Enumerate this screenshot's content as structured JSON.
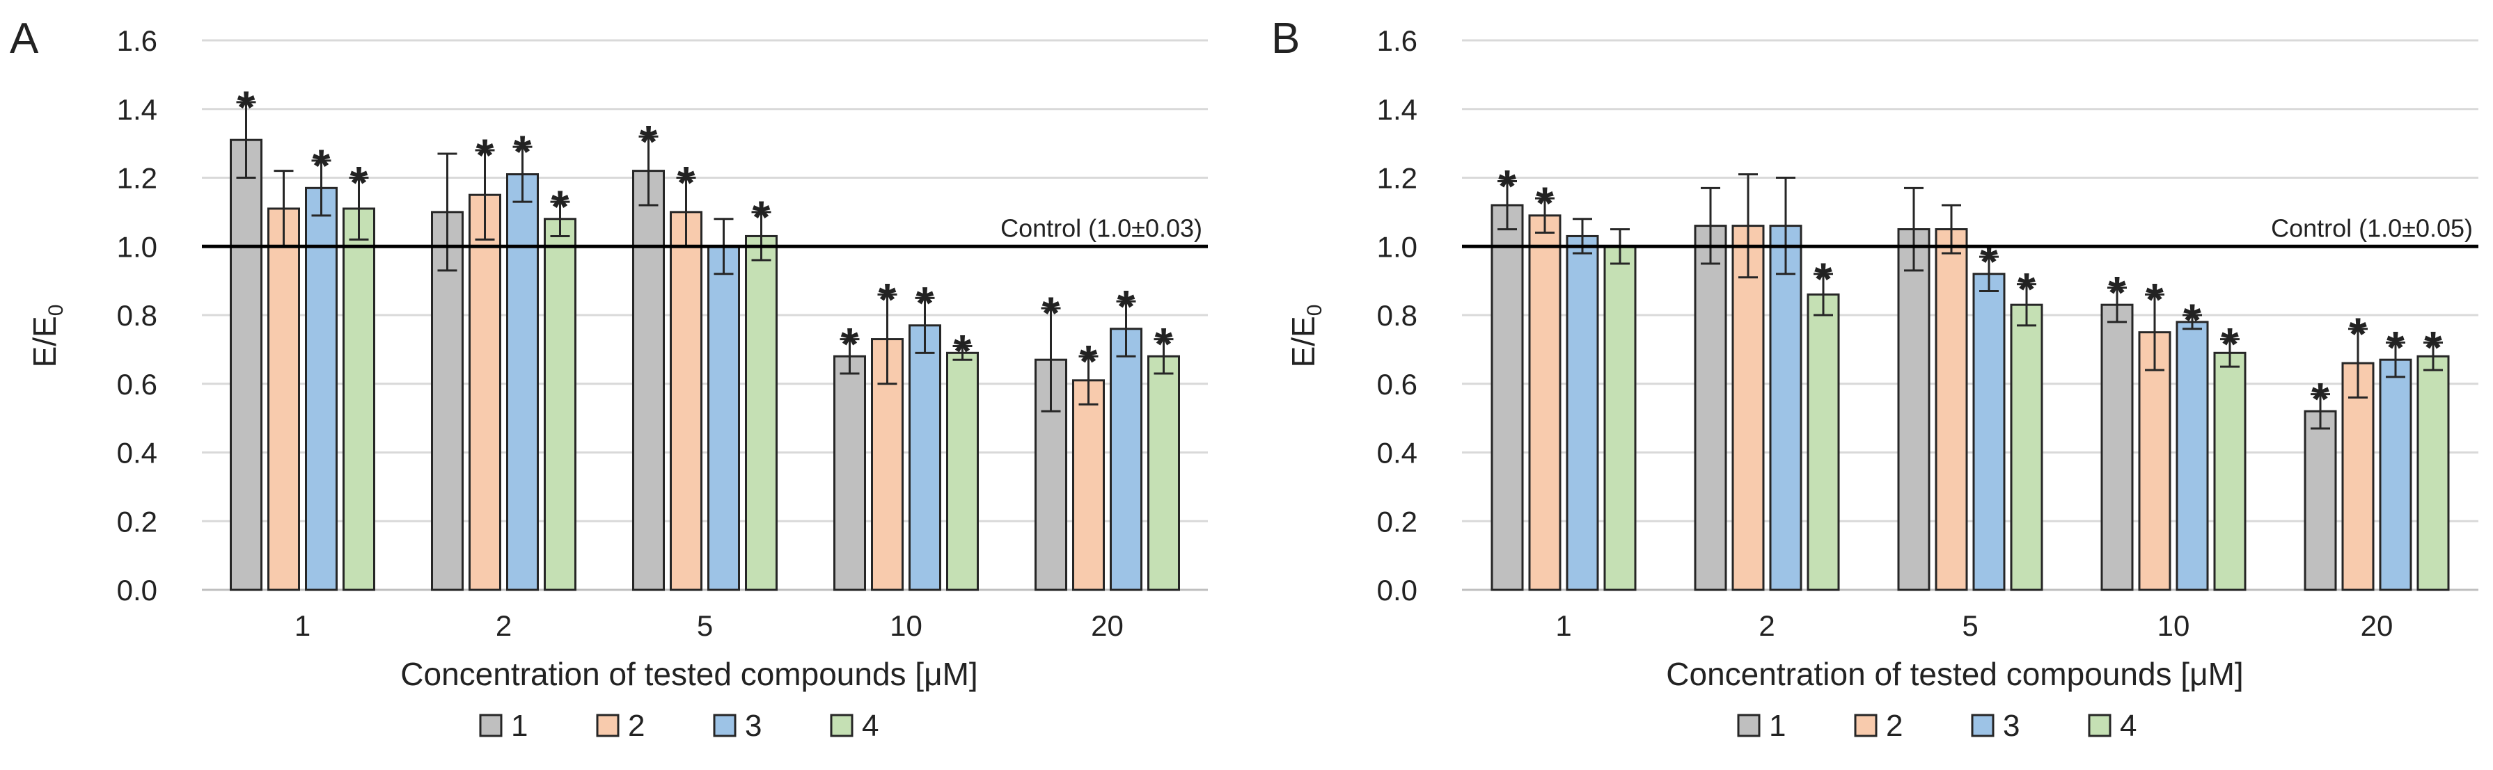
{
  "chart_data": [
    {
      "type": "bar",
      "panel": "A",
      "title": "",
      "xlabel": "Concentration of tested compounds [μM]",
      "ylabel": "E/E",
      "ylabel_subscript": "0",
      "ylim": [
        0,
        1.6
      ],
      "yticks": [
        "0.0",
        "0.2",
        "0.4",
        "0.6",
        "0.8",
        "1.0",
        "1.2",
        "1.4",
        "1.6"
      ],
      "grid": true,
      "legend_position": "bottom",
      "categories": [
        "1",
        "2",
        "5",
        "10",
        "20"
      ],
      "control_value": 1.0,
      "control_label": "Control (1.0±0.03)",
      "series": [
        {
          "name": "1",
          "color": "#bfbfbf",
          "values": [
            1.31,
            1.1,
            1.22,
            0.68,
            0.67
          ],
          "errors": [
            0.11,
            0.17,
            0.1,
            0.05,
            0.15
          ],
          "significant": [
            true,
            false,
            true,
            true,
            true
          ]
        },
        {
          "name": "2",
          "color": "#f8cbad",
          "values": [
            1.11,
            1.15,
            1.1,
            0.73,
            0.61
          ],
          "errors": [
            0.11,
            0.13,
            0.1,
            0.13,
            0.07
          ],
          "significant": [
            false,
            true,
            true,
            true,
            true
          ]
        },
        {
          "name": "3",
          "color": "#9dc3e6",
          "values": [
            1.17,
            1.21,
            1.0,
            0.77,
            0.76
          ],
          "errors": [
            0.08,
            0.08,
            0.08,
            0.08,
            0.08
          ],
          "significant": [
            true,
            true,
            false,
            true,
            true
          ]
        },
        {
          "name": "4",
          "color": "#c5e0b4",
          "values": [
            1.11,
            1.08,
            1.03,
            0.69,
            0.68
          ],
          "errors": [
            0.09,
            0.05,
            0.07,
            0.02,
            0.05
          ],
          "significant": [
            true,
            true,
            true,
            true,
            true
          ]
        }
      ]
    },
    {
      "type": "bar",
      "panel": "B",
      "title": "",
      "xlabel": "Concentration of tested compounds [μM]",
      "ylabel": "E/E",
      "ylabel_subscript": "0",
      "ylim": [
        0,
        1.6
      ],
      "yticks": [
        "0.0",
        "0.2",
        "0.4",
        "0.6",
        "0.8",
        "1.0",
        "1.2",
        "1.4",
        "1.6"
      ],
      "grid": true,
      "legend_position": "bottom",
      "categories": [
        "1",
        "2",
        "5",
        "10",
        "20"
      ],
      "control_value": 1.0,
      "control_label": "Control (1.0±0.05)",
      "series": [
        {
          "name": "1",
          "color": "#bfbfbf",
          "values": [
            1.12,
            1.06,
            1.05,
            0.83,
            0.52
          ],
          "errors": [
            0.07,
            0.11,
            0.12,
            0.05,
            0.05
          ],
          "significant": [
            true,
            false,
            false,
            true,
            true
          ]
        },
        {
          "name": "2",
          "color": "#f8cbad",
          "values": [
            1.09,
            1.06,
            1.05,
            0.75,
            0.66
          ],
          "errors": [
            0.05,
            0.15,
            0.07,
            0.11,
            0.1
          ],
          "significant": [
            true,
            false,
            false,
            true,
            true
          ]
        },
        {
          "name": "3",
          "color": "#9dc3e6",
          "values": [
            1.03,
            1.06,
            0.92,
            0.78,
            0.67
          ],
          "errors": [
            0.05,
            0.14,
            0.05,
            0.02,
            0.05
          ],
          "significant": [
            false,
            false,
            true,
            true,
            true
          ]
        },
        {
          "name": "4",
          "color": "#c5e0b4",
          "values": [
            1.0,
            0.86,
            0.83,
            0.69,
            0.68
          ],
          "errors": [
            0.05,
            0.06,
            0.06,
            0.04,
            0.04
          ],
          "significant": [
            false,
            true,
            true,
            true,
            true
          ]
        }
      ]
    }
  ]
}
